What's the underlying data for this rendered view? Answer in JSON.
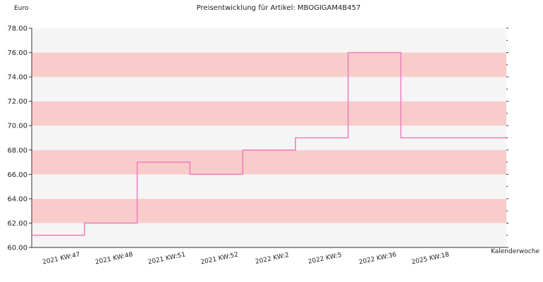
{
  "chart_data": {
    "type": "line",
    "step": true,
    "title": "Preisentwicklung für Artikel: MBOGIGAM4B457",
    "ylabel": "Euro",
    "xlabel": "Kalenderwoche",
    "ylim": [
      60,
      78
    ],
    "ytick_step": 2,
    "grid": "horizontal bands",
    "band_color": "#f9cccc",
    "alt_band_color": "#f5f5f5",
    "line_color": "#ee82bd",
    "categories": [
      "2021 KW:47",
      "2021 KW:48",
      "2021 KW:51",
      "2021 KW:52",
      "2022 KW:2",
      "2022 KW:5",
      "2022 KW:36",
      "2025 KW:18"
    ],
    "series": [
      {
        "values": [
          61,
          62,
          67,
          66,
          68,
          69,
          76,
          69
        ]
      }
    ]
  }
}
